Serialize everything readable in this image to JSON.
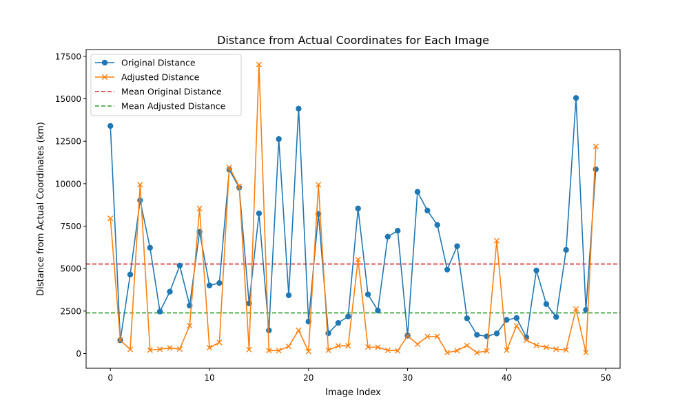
{
  "chart_data": {
    "type": "line",
    "title": "Distance from Actual Coordinates for Each Image",
    "xlabel": "Image Index",
    "ylabel": "Distance from Actual Coordinates (km)",
    "xlim": [
      -2.45,
      51.45
    ],
    "ylim": [
      -870,
      17900
    ],
    "xticks": [
      0,
      10,
      20,
      30,
      40,
      50
    ],
    "yticks": [
      0,
      2500,
      5000,
      7500,
      10000,
      12500,
      15000,
      17500
    ],
    "grid": false,
    "legend_position": "top-left",
    "x": [
      0,
      1,
      2,
      3,
      4,
      5,
      6,
      7,
      8,
      9,
      10,
      11,
      12,
      13,
      14,
      15,
      16,
      17,
      18,
      19,
      20,
      21,
      22,
      23,
      24,
      25,
      26,
      27,
      28,
      29,
      30,
      31,
      32,
      33,
      34,
      35,
      36,
      37,
      38,
      39,
      40,
      41,
      42,
      43,
      44,
      45,
      46,
      47,
      48,
      49
    ],
    "series": [
      {
        "name": "Original Distance",
        "color": "#1f77b4",
        "marker": "circle",
        "values": [
          13400,
          780,
          4650,
          9020,
          6230,
          2470,
          3640,
          5180,
          2820,
          7160,
          4010,
          4150,
          10830,
          9770,
          2950,
          8250,
          1360,
          12630,
          3430,
          14420,
          1880,
          8220,
          1190,
          1800,
          2180,
          8540,
          3480,
          2530,
          6880,
          7230,
          1050,
          9520,
          8420,
          7570,
          4940,
          6320,
          2070,
          1100,
          1010,
          1180,
          1980,
          2090,
          940,
          4890,
          2910,
          2150,
          6100,
          15050,
          2570,
          10850
        ]
      },
      {
        "name": "Adjusted Distance",
        "color": "#ff7f0e",
        "marker": "x",
        "values": [
          7960,
          780,
          240,
          9940,
          200,
          250,
          330,
          260,
          1640,
          8540,
          340,
          650,
          10960,
          9850,
          230,
          17020,
          170,
          170,
          420,
          1370,
          120,
          9940,
          190,
          450,
          450,
          5530,
          380,
          370,
          190,
          160,
          1040,
          550,
          1000,
          1010,
          50,
          170,
          470,
          50,
          150,
          6640,
          190,
          1630,
          790,
          480,
          370,
          250,
          210,
          2630,
          60,
          12200
        ]
      }
    ],
    "reference_lines": [
      {
        "name": "Mean Original Distance",
        "value": 5270,
        "color": "#d62728",
        "style": "dashed"
      },
      {
        "name": "Mean Adjusted Distance",
        "value": 2390,
        "color": "#2ca02c",
        "style": "dashed"
      }
    ]
  }
}
